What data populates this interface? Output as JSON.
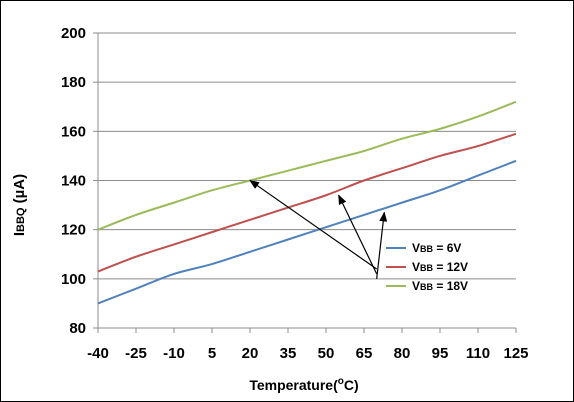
{
  "chart_data": {
    "type": "line",
    "title": "",
    "xlabel": "Temperature(°C)",
    "xlabel_parts": {
      "pre": "Temperature(",
      "sup": "o",
      "post": "C)"
    },
    "ylabel_parts": {
      "main": "I",
      "sub": "BBQ",
      "rest": " (µA)"
    },
    "x": [
      -40,
      -25,
      -10,
      5,
      20,
      35,
      50,
      65,
      80,
      95,
      110,
      125
    ],
    "xticks": [
      "-40",
      "-25",
      "-10",
      "5",
      "20",
      "35",
      "50",
      "65",
      "80",
      "95",
      "110",
      "125"
    ],
    "yticks": [
      "80",
      "100",
      "120",
      "140",
      "160",
      "180",
      "200"
    ],
    "xlim": [
      -40,
      125
    ],
    "ylim": [
      80,
      200
    ],
    "grid": "horizontal",
    "legend_position": "lower-right",
    "series": [
      {
        "name": "VBB = 6V",
        "label_parts": {
          "main": "V",
          "sub": "BB",
          "rest": " = 6V"
        },
        "color": "#4F81BD",
        "values": [
          90,
          96,
          102,
          106,
          111,
          116,
          121,
          126,
          131,
          136,
          142,
          148
        ]
      },
      {
        "name": "VBB = 12V",
        "label_parts": {
          "main": "V",
          "sub": "BB",
          "rest": " = 12V"
        },
        "color": "#C0504D",
        "values": [
          103,
          109,
          114,
          119,
          124,
          129,
          134,
          140,
          145,
          150,
          154,
          159
        ]
      },
      {
        "name": "VBB = 18V",
        "label_parts": {
          "main": "V",
          "sub": "BB",
          "rest": " = 18V"
        },
        "color": "#9BBB59",
        "values": [
          120,
          126,
          131,
          136,
          140,
          144,
          148,
          152,
          157,
          161,
          166,
          172
        ]
      }
    ],
    "annotations": [
      {
        "from": [
          70,
          104
        ],
        "to": [
          20,
          140
        ]
      },
      {
        "from": [
          70,
          102
        ],
        "to": [
          55,
          134
        ]
      },
      {
        "from": [
          70,
          100
        ],
        "to": [
          73,
          127
        ]
      }
    ]
  }
}
